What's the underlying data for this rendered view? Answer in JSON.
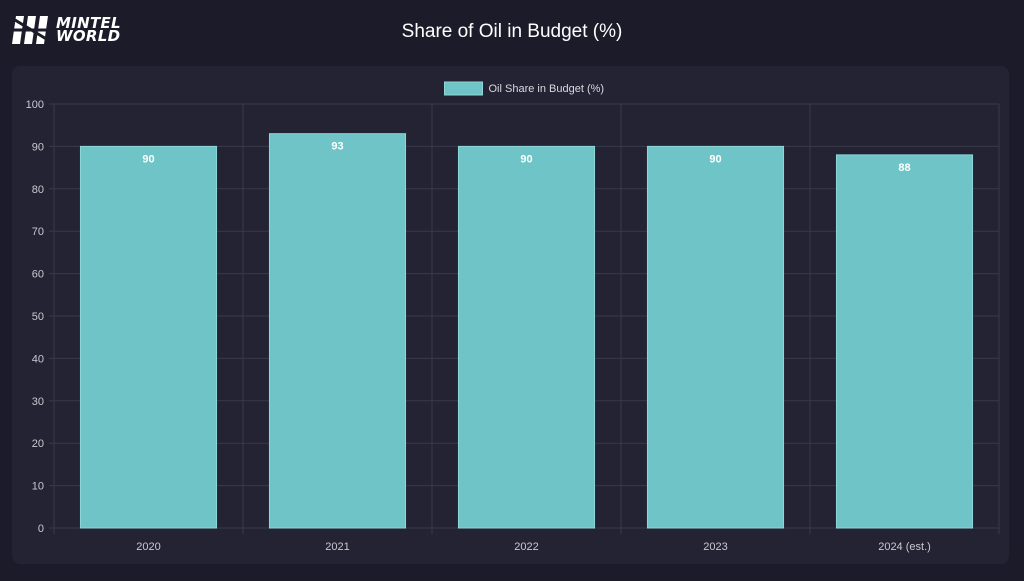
{
  "header": {
    "logo_line1": "MINTEL",
    "logo_line2": "WORLD",
    "title": "Share of Oil in Budget (%)"
  },
  "colors": {
    "background": "#1c1b29",
    "card": "#242333",
    "bar": "#6ec4c6",
    "grid": "#3a394a"
  },
  "chart_data": {
    "type": "bar",
    "categories": [
      "2020",
      "2021",
      "2022",
      "2023",
      "2024 (est.)"
    ],
    "series": [
      {
        "name": "Oil Share in Budget (%)",
        "values": [
          90,
          93,
          90,
          90,
          88
        ]
      }
    ],
    "ylim": [
      0,
      100
    ],
    "yticks": [
      0,
      10,
      20,
      30,
      40,
      50,
      60,
      70,
      80,
      90,
      100
    ],
    "grid": true,
    "legend": "top-center",
    "data_labels": true
  }
}
